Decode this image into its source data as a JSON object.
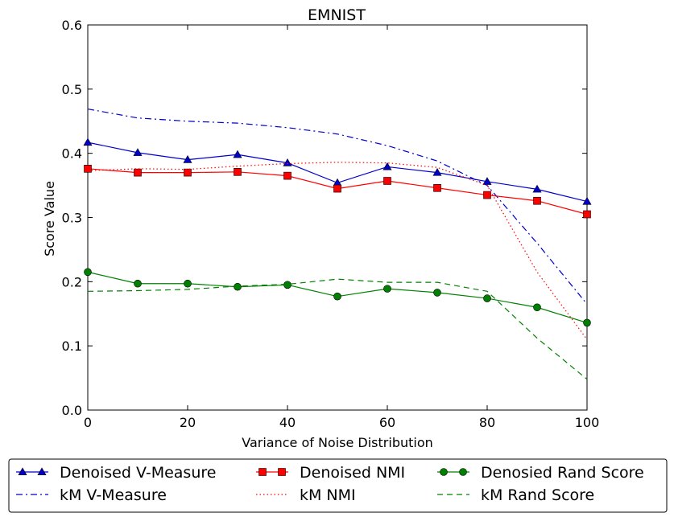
{
  "chart_data": {
    "type": "line",
    "title": "EMNIST",
    "xlabel": "Variance of Noise Distribution",
    "ylabel": "Score Value",
    "xlim": [
      0,
      100
    ],
    "ylim": [
      0.0,
      0.6
    ],
    "xticks": [
      0,
      20,
      40,
      60,
      80,
      100
    ],
    "yticks": [
      0.0,
      0.1,
      0.2,
      0.3,
      0.4,
      0.5,
      0.6
    ],
    "grid": false,
    "legend_position": "bottom, below plot, 3 columns",
    "series": [
      {
        "name": "Denoised V-Measure",
        "color": "#0000cc",
        "line": "solid",
        "marker": "triangle",
        "x": [
          0,
          10,
          20,
          30,
          40,
          50,
          60,
          70,
          80,
          90,
          100
        ],
        "values": [
          0.417,
          0.401,
          0.39,
          0.398,
          0.385,
          0.354,
          0.379,
          0.37,
          0.356,
          0.344,
          0.325
        ]
      },
      {
        "name": "kM V-Measure",
        "color": "#0000cc",
        "line": "dashdot",
        "marker": "none",
        "x": [
          0,
          10,
          20,
          30,
          40,
          50,
          60,
          70,
          80,
          90,
          100
        ],
        "values": [
          0.469,
          0.455,
          0.45,
          0.447,
          0.44,
          0.43,
          0.412,
          0.388,
          0.35,
          0.26,
          0.165
        ]
      },
      {
        "name": "Denoised NMI",
        "color": "#ff0000",
        "line": "solid",
        "marker": "square",
        "x": [
          0,
          10,
          20,
          30,
          40,
          50,
          60,
          70,
          80,
          90,
          100
        ],
        "values": [
          0.376,
          0.37,
          0.37,
          0.371,
          0.365,
          0.345,
          0.357,
          0.346,
          0.335,
          0.326,
          0.305
        ]
      },
      {
        "name": "kM NMI",
        "color": "#ff0000",
        "line": "dotted",
        "marker": "none",
        "x": [
          0,
          10,
          20,
          30,
          40,
          50,
          60,
          70,
          80,
          90,
          100
        ],
        "values": [
          0.373,
          0.376,
          0.375,
          0.38,
          0.384,
          0.386,
          0.385,
          0.378,
          0.35,
          0.215,
          0.11
        ]
      },
      {
        "name": "Denosied Rand Score",
        "color": "#008000",
        "line": "solid",
        "marker": "circle",
        "x": [
          0,
          10,
          20,
          30,
          40,
          50,
          60,
          70,
          80,
          90,
          100
        ],
        "values": [
          0.215,
          0.197,
          0.197,
          0.192,
          0.195,
          0.177,
          0.189,
          0.183,
          0.174,
          0.16,
          0.136
        ]
      },
      {
        "name": "kM Rand Score",
        "color": "#008000",
        "line": "dashed",
        "marker": "none",
        "x": [
          0,
          10,
          20,
          30,
          40,
          50,
          60,
          70,
          80,
          90,
          100
        ],
        "values": [
          0.185,
          0.186,
          0.188,
          0.193,
          0.196,
          0.204,
          0.199,
          0.199,
          0.185,
          0.112,
          0.048
        ]
      }
    ]
  }
}
